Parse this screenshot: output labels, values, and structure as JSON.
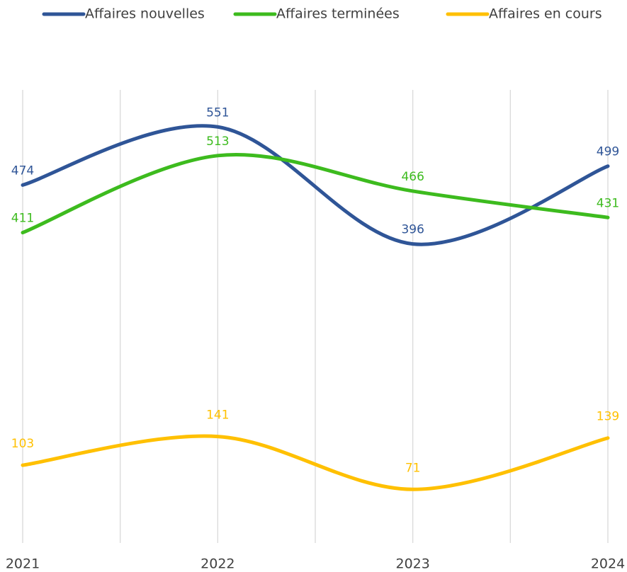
{
  "chart_data": {
    "type": "line",
    "categories": [
      "2021",
      "2022",
      "2023",
      "2024"
    ],
    "series": [
      {
        "name": "Affaires nouvelles",
        "color": "#2f5597",
        "values": [
          474,
          551,
          396,
          499
        ]
      },
      {
        "name": "Affaires terminées",
        "color": "#3dbb1e",
        "values": [
          411,
          513,
          466,
          431
        ]
      },
      {
        "name": "Affaires en cours",
        "color": "#ffc000",
        "values": [
          103,
          141,
          71,
          139
        ]
      }
    ],
    "ylim": [
      0,
      600
    ],
    "smooth": true,
    "legend": "top"
  }
}
